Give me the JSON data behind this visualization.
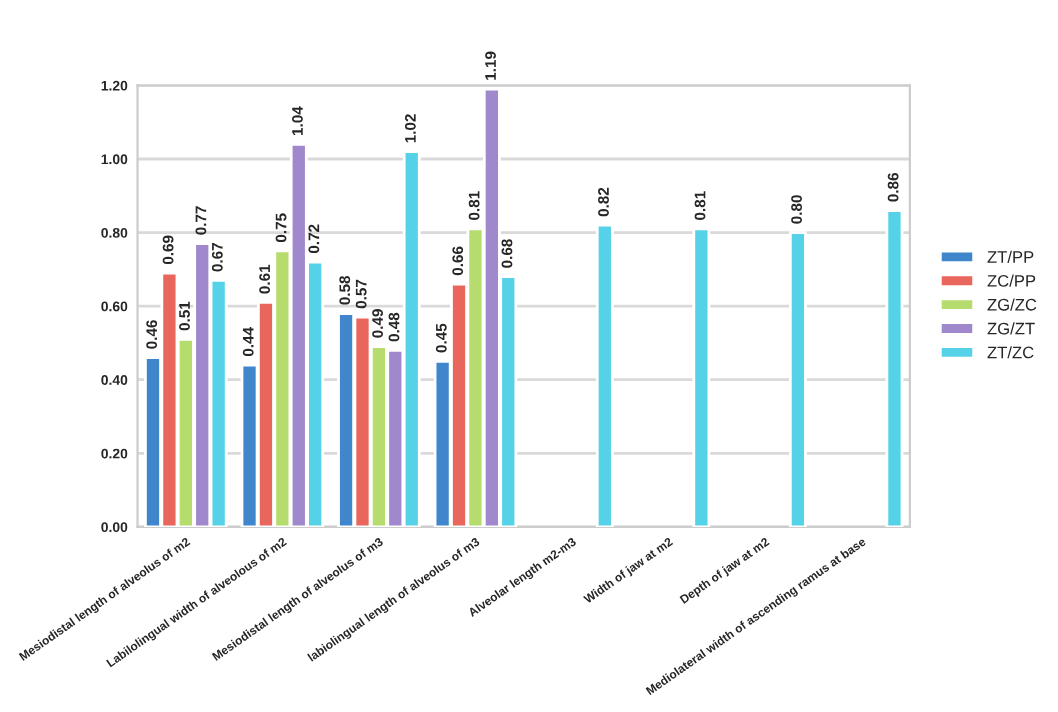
{
  "chart_data": {
    "type": "bar",
    "categories": [
      "Mesiodistal length of alveolus of m2",
      "Labilolingual width of alveolous of m2",
      "Mesiodistal length of alveolus of m3",
      "labiolingual length of alveolus of m3",
      "Alveolar length m2-m3",
      "Width of jaw at m2",
      "Depth of jaw at m2",
      "Mediolateral width of ascending ramus at base"
    ],
    "series": [
      {
        "name": "ZT/PP",
        "color": "#3f86cc",
        "values": [
          0.46,
          0.44,
          0.58,
          0.45,
          null,
          null,
          null,
          null
        ],
        "value_labels": [
          "0.46",
          "0.44",
          "0.58",
          "0.45",
          null,
          null,
          null,
          null
        ]
      },
      {
        "name": "ZC/PP",
        "color": "#e8665c",
        "values": [
          0.69,
          0.61,
          0.57,
          0.66,
          null,
          null,
          null,
          null
        ],
        "value_labels": [
          "0.69",
          "0.61",
          "0.57",
          "0.66",
          null,
          null,
          null,
          null
        ]
      },
      {
        "name": "ZG/ZC",
        "color": "#b7dc6e",
        "values": [
          0.51,
          0.75,
          0.49,
          0.81,
          null,
          null,
          null,
          null
        ],
        "value_labels": [
          "0.51",
          "0.75",
          "0.49",
          "0.81",
          null,
          null,
          null,
          null
        ]
      },
      {
        "name": "ZG/ZT",
        "color": "#a088cc",
        "values": [
          0.77,
          1.04,
          0.48,
          1.19,
          null,
          null,
          null,
          null
        ],
        "value_labels": [
          "0.77",
          "1.04",
          "0.48",
          "1.19",
          null,
          null,
          null,
          null
        ]
      },
      {
        "name": "ZT/ZC",
        "color": "#55d2e8",
        "values": [
          0.67,
          0.72,
          1.02,
          0.68,
          0.82,
          0.81,
          0.8,
          0.86
        ],
        "value_labels": [
          "0.67",
          "0.72",
          "1.02",
          "0.68",
          "0.82",
          "0.81",
          "0.80",
          "0.86"
        ]
      }
    ],
    "ylim": [
      0,
      1.2
    ],
    "yticks": [
      {
        "value": 0,
        "label": "0.00"
      },
      {
        "value": 0.2,
        "label": "0.20"
      },
      {
        "value": 0.4,
        "label": "0.40"
      },
      {
        "value": 0.6,
        "label": "0.60"
      },
      {
        "value": 0.8,
        "label": "0.80"
      },
      {
        "value": 1.0,
        "label": "1.00"
      },
      {
        "value": 1.2,
        "label": "1.20"
      }
    ],
    "grid": "y",
    "legend": "right"
  }
}
